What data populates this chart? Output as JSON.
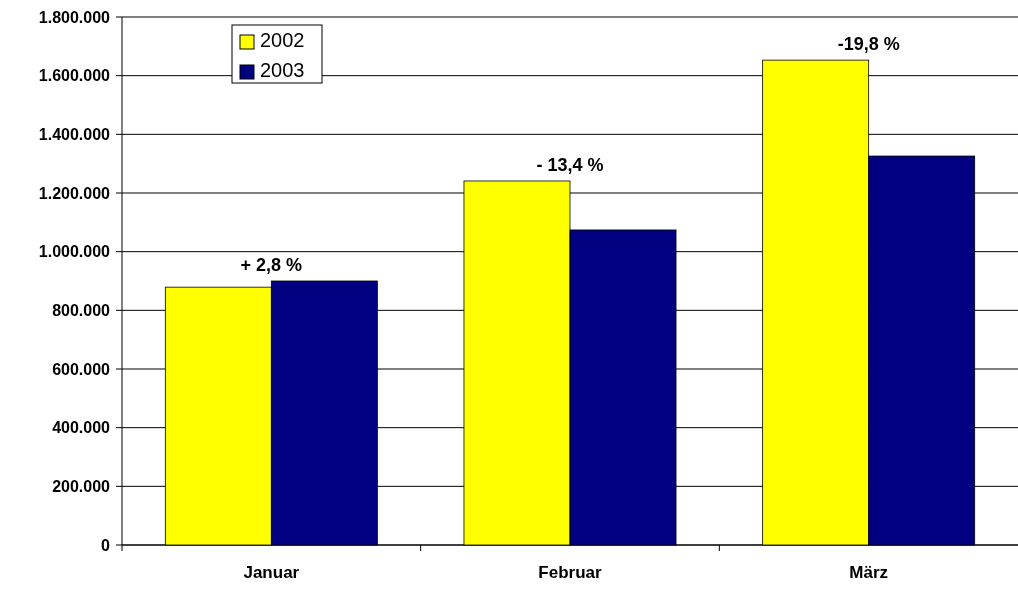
{
  "chart_data": {
    "type": "bar",
    "categories": [
      "Januar",
      "Februar",
      "März"
    ],
    "series": [
      {
        "name": "2002",
        "color": "#ffff00",
        "values": [
          879000,
          1241000,
          1653000
        ]
      },
      {
        "name": "2003",
        "color": "#000080",
        "values": [
          900000,
          1074000,
          1326000
        ]
      }
    ],
    "ylim": [
      0,
      1800000
    ],
    "yticks": [
      {
        "value": 0,
        "label": "0"
      },
      {
        "value": 200000,
        "label": "200.000"
      },
      {
        "value": 400000,
        "label": "400.000"
      },
      {
        "value": 600000,
        "label": "600.000"
      },
      {
        "value": 800000,
        "label": "800.000"
      },
      {
        "value": 1000000,
        "label": "1.000.000"
      },
      {
        "value": 1200000,
        "label": "1.200.000"
      },
      {
        "value": 1400000,
        "label": "1.400.000"
      },
      {
        "value": 1600000,
        "label": "1.600.000"
      },
      {
        "value": 1800000,
        "label": "1.800.000"
      }
    ],
    "grid": "y",
    "legend": "top left",
    "annotations": [
      "+ 2,8 %",
      "- 13,4 %",
      "-19,8 %"
    ]
  }
}
